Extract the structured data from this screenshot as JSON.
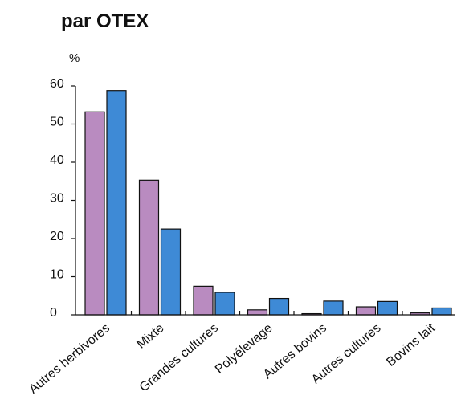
{
  "chart_data": {
    "type": "bar",
    "title": "par OTEX",
    "ylabel": "%",
    "xlabel": "",
    "ylim": [
      0,
      60
    ],
    "yticks": [
      0,
      10,
      20,
      30,
      40,
      50,
      60
    ],
    "grid": false,
    "legend": "none",
    "categories": [
      "Autres herbivores",
      "Mixte",
      "Grandes cultures",
      "Polyélevage",
      "Autres bovins",
      "Autres cultures",
      "Bovins lait"
    ],
    "series": [
      {
        "color": "#b98bc0",
        "values": [
          53.2,
          35.3,
          7.5,
          1.3,
          0.3,
          2.1,
          0.5
        ]
      },
      {
        "color": "#3e8ad6",
        "values": [
          58.8,
          22.5,
          5.9,
          4.3,
          3.6,
          3.5,
          1.8
        ]
      }
    ]
  }
}
